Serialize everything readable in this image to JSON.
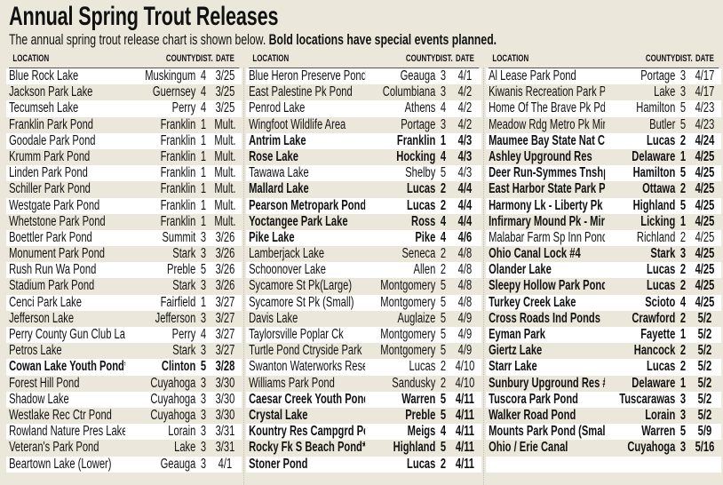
{
  "title": "Annual Spring Trout Releases",
  "subtitle": {
    "text": "The annual spring trout release chart is shown below. ",
    "bold": "Bold locations have special events planned."
  },
  "headers": {
    "location": "LOCATION",
    "county": "COUNTY",
    "dist": "DIST.",
    "date": "DATE"
  },
  "colors": {
    "background": "#ebe7da",
    "stripe": "#ffffff"
  },
  "columns": [
    [
      {
        "location": "Blue Rock Lake",
        "county": "Muskingum",
        "dist": "4",
        "date": "3/25"
      },
      {
        "location": "Jackson Park Lake",
        "county": "Guernsey",
        "dist": "4",
        "date": "3/25"
      },
      {
        "location": "Tecumseh Lake",
        "county": "Perry",
        "dist": "4",
        "date": "3/25"
      },
      {
        "location": "Franklin Park Pond",
        "county": "Franklin",
        "dist": "1",
        "date": "Mult."
      },
      {
        "location": "Goodale Park Pond",
        "county": "Franklin",
        "dist": "1",
        "date": "Mult."
      },
      {
        "location": "Krumm Park Pond",
        "county": "Franklin",
        "dist": "1",
        "date": "Mult."
      },
      {
        "location": "Linden Park Pond",
        "county": "Franklin",
        "dist": "1",
        "date": "Mult."
      },
      {
        "location": "Schiller Park Pond",
        "county": "Franklin",
        "dist": "1",
        "date": "Mult."
      },
      {
        "location": "Westgate Park Pond",
        "county": "Franklin",
        "dist": "1",
        "date": "Mult."
      },
      {
        "location": "Whetstone Park Pond",
        "county": "Franklin",
        "dist": "1",
        "date": "Mult."
      },
      {
        "location": "Boettler Park Pond",
        "county": "Summit",
        "dist": "3",
        "date": "3/26"
      },
      {
        "location": "Monument Park Pond",
        "county": "Stark",
        "dist": "3",
        "date": "3/26"
      },
      {
        "location": "Rush Run Wa Pond",
        "county": "Preble",
        "dist": "5",
        "date": "3/26"
      },
      {
        "location": "Stadium Park Pond",
        "county": "Stark",
        "dist": "3",
        "date": "3/26"
      },
      {
        "location": "Cenci Park Lake",
        "county": "Fairfield",
        "dist": "1",
        "date": "3/27"
      },
      {
        "location": "Jefferson Lake",
        "county": "Jefferson",
        "dist": "3",
        "date": "3/27"
      },
      {
        "location": "Perry County Gun Club Lake",
        "county": "Perry",
        "dist": "4",
        "date": "3/27"
      },
      {
        "location": "Petros Lake",
        "county": "Stark",
        "dist": "3",
        "date": "3/27"
      },
      {
        "location": "Cowan Lake Youth Pond***",
        "county": "Clinton",
        "dist": "5",
        "date": "3/28",
        "bold": true
      },
      {
        "location": "Forest Hill Pond",
        "county": "Cuyahoga",
        "dist": "3",
        "date": "3/30"
      },
      {
        "location": "Shadow Lake",
        "county": "Cuyahoga",
        "dist": "3",
        "date": "3/30"
      },
      {
        "location": "Westlake Rec Ctr Pond",
        "county": "Cuyahoga",
        "dist": "3",
        "date": "3/30"
      },
      {
        "location": "Rowland Nature Pres Lake",
        "county": "Lorain",
        "dist": "3",
        "date": "3/31"
      },
      {
        "location": "Veteran's Park Pond",
        "county": "Lake",
        "dist": "3",
        "date": "3/31"
      },
      {
        "location": "Beartown Lake (Lower)",
        "county": "Geauga",
        "dist": "3",
        "date": "4/1"
      }
    ],
    [
      {
        "location": "Blue Heron Preserve Pond",
        "county": "Geauga",
        "dist": "3",
        "date": "4/1"
      },
      {
        "location": "East Palestine Pk Pond",
        "county": "Columbiana",
        "dist": "3",
        "date": "4/2"
      },
      {
        "location": "Penrod Lake",
        "county": "Athens",
        "dist": "4",
        "date": "4/2"
      },
      {
        "location": "Wingfoot Wildlife Area",
        "county": "Portage",
        "dist": "3",
        "date": "4/2"
      },
      {
        "location": "Antrim Lake",
        "county": "Franklin",
        "dist": "1",
        "date": "4/3",
        "bold": true
      },
      {
        "location": "Rose Lake",
        "county": "Hocking",
        "dist": "4",
        "date": "4/3",
        "bold": true
      },
      {
        "location": "Tawawa Lake",
        "county": "Shelby",
        "dist": "5",
        "date": "4/3"
      },
      {
        "location": "Mallard Lake",
        "county": "Lucas",
        "dist": "2",
        "date": "4/4",
        "bold": true
      },
      {
        "location": "Pearson Metropark Ponds",
        "county": "Lucas",
        "dist": "2",
        "date": "4/4",
        "bold": true
      },
      {
        "location": "Yoctangee Park Lake",
        "county": "Ross",
        "dist": "4",
        "date": "4/4",
        "bold": true
      },
      {
        "location": "Pike Lake",
        "county": "Pike",
        "dist": "4",
        "date": "4/6",
        "bold": true
      },
      {
        "location": "Lamberjack Lake",
        "county": "Seneca",
        "dist": "2",
        "date": "4/8"
      },
      {
        "location": "Schoonover Lake",
        "county": "Allen",
        "dist": "2",
        "date": "4/8"
      },
      {
        "location": "Sycamore St Pk(Large)",
        "county": "Montgomery",
        "dist": "5",
        "date": "4/8"
      },
      {
        "location": "Sycamore St Pk (Small)",
        "county": "Montgomery",
        "dist": "5",
        "date": "4/8"
      },
      {
        "location": "Davis Lake",
        "county": "Auglaize",
        "dist": "5",
        "date": "4/9"
      },
      {
        "location": "Taylorsville Poplar Ck",
        "county": "Montgomery",
        "dist": "5",
        "date": "4/9"
      },
      {
        "location": "Turtle Pond Ctryside Park",
        "county": "Montgomery",
        "dist": "5",
        "date": "4/9"
      },
      {
        "location": "Swanton Waterworks Reservoir",
        "county": "Lucas",
        "dist": "2",
        "date": "4/10"
      },
      {
        "location": "Williams Park Pond",
        "county": "Sandusky",
        "dist": "2",
        "date": "4/10"
      },
      {
        "location": "Caesar Creek Youth Pond***",
        "county": "Warren",
        "dist": "5",
        "date": "4/11",
        "bold": true
      },
      {
        "location": "Crystal Lake",
        "county": "Preble",
        "dist": "5",
        "date": "4/11",
        "bold": true
      },
      {
        "location": "Kountry Res Campgrd Pond",
        "county": "Meigs",
        "dist": "4",
        "date": "4/11",
        "bold": true
      },
      {
        "location": "Rocky Fk S Beach Pond***",
        "county": "Highland",
        "dist": "5",
        "date": "4/11",
        "bold": true
      },
      {
        "location": "Stoner Pond",
        "county": "Lucas",
        "dist": "2",
        "date": "4/11",
        "bold": true
      }
    ],
    [
      {
        "location": "Al Lease Park Pond",
        "county": "Portage",
        "dist": "3",
        "date": "4/17"
      },
      {
        "location": "Kiwanis Recreation Park Pond",
        "county": "Lake",
        "dist": "3",
        "date": "4/17"
      },
      {
        "location": "Home Of The Brave Pk Pd",
        "county": "Hamilton",
        "dist": "5",
        "date": "4/23"
      },
      {
        "location": "Meadow Rdg Metro Pk Mirror Pd",
        "county": "Butler",
        "dist": "5",
        "date": "4/23"
      },
      {
        "location": "Maumee Bay State Nat Ctr Pd",
        "county": "Lucas",
        "dist": "2",
        "date": "4/24",
        "bold": true
      },
      {
        "location": "Ashley Upground Res",
        "county": "Delaware",
        "dist": "1",
        "date": "4/25",
        "bold": true
      },
      {
        "location": "Deer Run-Symmes Tnshp Pd",
        "county": "Hamilton",
        "dist": "5",
        "date": "4/25",
        "bold": true
      },
      {
        "location": "East Harbor State Park Pond",
        "county": "Ottawa",
        "dist": "2",
        "date": "4/25",
        "bold": true
      },
      {
        "location": "Harmony Lk - Liberty Pk",
        "county": "Highland",
        "dist": "5",
        "date": "4/25",
        "bold": true
      },
      {
        "location": "Infirmary Mound Pk - Mirror Lk",
        "county": "Licking",
        "dist": "1",
        "date": "4/25",
        "bold": true
      },
      {
        "location": "Malabar Farm Sp Inn Pond",
        "county": "Richland",
        "dist": "2",
        "date": "4/25"
      },
      {
        "location": "Ohio Canal Lock #4",
        "county": "Stark",
        "dist": "3",
        "date": "4/25",
        "bold": true
      },
      {
        "location": "Olander Lake",
        "county": "Lucas",
        "dist": "2",
        "date": "4/25",
        "bold": true
      },
      {
        "location": "Sleepy Hollow Park Pond",
        "county": "Lucas",
        "dist": "2",
        "date": "4/25",
        "bold": true
      },
      {
        "location": "Turkey Creek Lake",
        "county": "Scioto",
        "dist": "4",
        "date": "4/25",
        "bold": true
      },
      {
        "location": "Cross Roads Ind Ponds",
        "county": "Crawford",
        "dist": "2",
        "date": "5/2",
        "bold": true
      },
      {
        "location": "Eyman Park",
        "county": "Fayette",
        "dist": "1",
        "date": "5/2",
        "bold": true
      },
      {
        "location": "Giertz Lake",
        "county": "Hancock",
        "dist": "2",
        "date": "5/2",
        "bold": true
      },
      {
        "location": "Starr Lake",
        "county": "Lucas",
        "dist": "2",
        "date": "5/2",
        "bold": true
      },
      {
        "location": "Sunbury Upground Res #2",
        "county": "Delaware",
        "dist": "1",
        "date": "5/2",
        "bold": true
      },
      {
        "location": "Tuscora Park Pond",
        "county": "Tuscarawas",
        "dist": "3",
        "date": "5/2",
        "bold": true
      },
      {
        "location": "Walker Road Pond",
        "county": "Lorain",
        "dist": "3",
        "date": "5/2",
        "bold": true
      },
      {
        "location": "Mounts Park Pond (Small)",
        "county": "Warren",
        "dist": "5",
        "date": "5/9",
        "bold": true
      },
      {
        "location": "Ohio / Erie Canal",
        "county": "Cuyahoga",
        "dist": "3",
        "date": "5/16",
        "bold": true
      }
    ]
  ]
}
